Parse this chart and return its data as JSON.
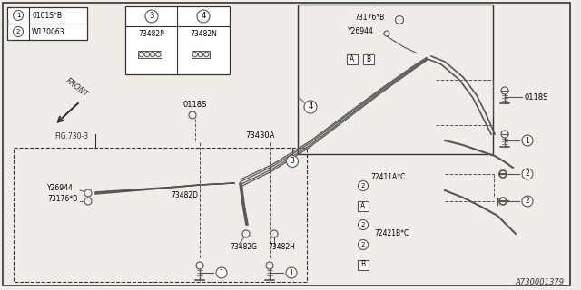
{
  "bg_color": "#f0ede8",
  "line_color": "#555555",
  "dark_color": "#333333",
  "title_bottom": "A730001379",
  "legend": [
    {
      "num": "1",
      "code": "0101S*B"
    },
    {
      "num": "2",
      "code": "W170063"
    }
  ],
  "inset": [
    {
      "num": "3",
      "code": "73482P"
    },
    {
      "num": "4",
      "code": "73482N"
    }
  ],
  "figsize": [
    6.4,
    3.2
  ],
  "dpi": 100
}
